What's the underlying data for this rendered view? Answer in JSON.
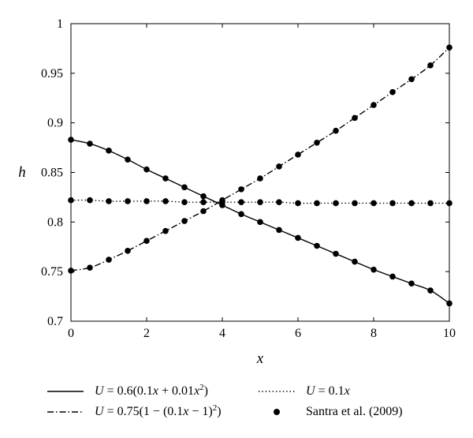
{
  "chart_data": {
    "type": "line",
    "xlabel": "x",
    "ylabel": "h",
    "xlim": [
      0,
      10
    ],
    "ylim": [
      0.7,
      1.0
    ],
    "xticks": [
      0,
      2,
      4,
      6,
      8,
      10
    ],
    "xtick_labels": [
      "0",
      "2",
      "4",
      "6",
      "8",
      "10"
    ],
    "yticks": [
      0.7,
      0.75,
      0.8,
      0.85,
      0.9,
      0.95,
      1.0
    ],
    "ytick_labels": [
      "0.7",
      "0.75",
      "0.8",
      "0.85",
      "0.9",
      "0.95",
      "1"
    ],
    "grid": false,
    "legend_position": "bottom",
    "series": [
      {
        "key": "quad",
        "line_style": "solid",
        "label_parts": [
          [
            "U",
            true
          ],
          [
            " = 0.6(0.1",
            false
          ],
          [
            "x",
            true
          ],
          [
            " + 0.01",
            false
          ],
          [
            "x",
            true
          ],
          [
            "2",
            "sup"
          ],
          [
            ")",
            false
          ]
        ],
        "x": [
          0,
          0.5,
          1.0,
          1.5,
          2.0,
          2.5,
          3.0,
          3.5,
          4.0,
          4.5,
          5.0,
          5.5,
          6.0,
          6.5,
          7.0,
          7.5,
          8.0,
          8.5,
          9.0,
          9.5,
          10.0
        ],
        "y": [
          0.883,
          0.879,
          0.872,
          0.863,
          0.853,
          0.844,
          0.835,
          0.826,
          0.817,
          0.808,
          0.8,
          0.792,
          0.784,
          0.776,
          0.768,
          0.76,
          0.752,
          0.745,
          0.738,
          0.731,
          0.718
        ]
      },
      {
        "key": "dashdot",
        "line_style": "dashdot",
        "label_parts": [
          [
            "U",
            true
          ],
          [
            " = 0.75(1 − (0.1",
            false
          ],
          [
            "x",
            true
          ],
          [
            " − 1)",
            false
          ],
          [
            "2",
            "sup"
          ],
          [
            ")",
            false
          ]
        ],
        "x": [
          0,
          0.5,
          1.0,
          1.5,
          2.0,
          2.5,
          3.0,
          3.5,
          4.0,
          4.5,
          5.0,
          5.5,
          6.0,
          6.5,
          7.0,
          7.5,
          8.0,
          8.5,
          9.0,
          9.5,
          10.0
        ],
        "y": [
          0.751,
          0.754,
          0.762,
          0.771,
          0.781,
          0.791,
          0.801,
          0.811,
          0.822,
          0.833,
          0.844,
          0.856,
          0.868,
          0.88,
          0.892,
          0.905,
          0.918,
          0.931,
          0.944,
          0.958,
          0.976
        ]
      },
      {
        "key": "linear",
        "line_style": "dotted",
        "label_parts": [
          [
            "U",
            true
          ],
          [
            " = 0.1",
            false
          ],
          [
            "x",
            true
          ]
        ],
        "x": [
          0,
          0.5,
          1.0,
          1.5,
          2.0,
          2.5,
          3.0,
          3.5,
          4.0,
          4.5,
          5.0,
          5.5,
          6.0,
          6.5,
          7.0,
          7.5,
          8.0,
          8.5,
          9.0,
          9.5,
          10.0
        ],
        "y": [
          0.822,
          0.822,
          0.821,
          0.821,
          0.821,
          0.821,
          0.82,
          0.82,
          0.82,
          0.82,
          0.82,
          0.82,
          0.819,
          0.819,
          0.819,
          0.819,
          0.819,
          0.819,
          0.819,
          0.819,
          0.819
        ]
      },
      {
        "key": "santra",
        "line_style": "markers",
        "name": "Santra et al. (2009)",
        "x": [
          0,
          0.5,
          1.0,
          1.5,
          2.0,
          2.5,
          3.0,
          3.5,
          4.0,
          4.5,
          5.0,
          5.5,
          6.0,
          6.5,
          7.0,
          7.5,
          8.0,
          8.5,
          9.0,
          9.5,
          10.0
        ],
        "y": [
          0.883,
          0.879,
          0.872,
          0.863,
          0.853,
          0.844,
          0.835,
          0.826,
          0.817,
          0.808,
          0.8,
          0.792,
          0.784,
          0.776,
          0.768,
          0.76,
          0.752,
          0.745,
          0.738,
          0.731,
          0.718
        ],
        "extra_point_sets": [
          {
            "x": [
              0,
              0.5,
              1.0,
              1.5,
              2.0,
              2.5,
              3.0,
              3.5,
              4.0,
              4.5,
              5.0,
              5.5,
              6.0,
              6.5,
              7.0,
              7.5,
              8.0,
              8.5,
              9.0,
              9.5,
              10.0
            ],
            "y": [
              0.751,
              0.754,
              0.762,
              0.771,
              0.781,
              0.791,
              0.801,
              0.811,
              0.822,
              0.833,
              0.844,
              0.856,
              0.868,
              0.88,
              0.892,
              0.905,
              0.918,
              0.931,
              0.944,
              0.958,
              0.976
            ]
          },
          {
            "x": [
              0,
              0.5,
              1.0,
              1.5,
              2.0,
              2.5,
              3.0,
              3.5,
              4.0,
              4.5,
              5.0,
              5.5,
              6.0,
              6.5,
              7.0,
              7.5,
              8.0,
              8.5,
              9.0,
              9.5,
              10.0
            ],
            "y": [
              0.822,
              0.822,
              0.821,
              0.821,
              0.821,
              0.821,
              0.82,
              0.82,
              0.82,
              0.82,
              0.82,
              0.82,
              0.819,
              0.819,
              0.819,
              0.819,
              0.819,
              0.819,
              0.819,
              0.819,
              0.819
            ]
          }
        ]
      }
    ],
    "colors": {
      "line": "#000000",
      "marker": "#000000",
      "axes": "#000000",
      "background": "#ffffff"
    }
  }
}
